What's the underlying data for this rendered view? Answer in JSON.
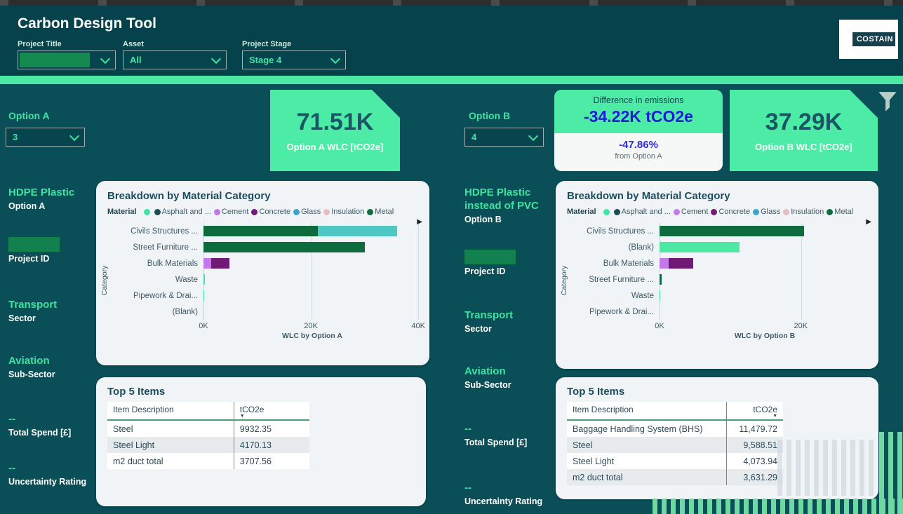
{
  "header": {
    "title": "Carbon Design Tool",
    "logo": "COSTAIN",
    "filters": [
      {
        "label": "Project Title",
        "value": ""
      },
      {
        "label": "Asset",
        "value": "All"
      },
      {
        "label": "Project Stage",
        "value": "Stage 4"
      }
    ]
  },
  "option_a": {
    "label": "Option A",
    "dropdown_value": "3",
    "kpi_value": "71.51K",
    "kpi_label": "Option A WLC [tCO2e]"
  },
  "option_b": {
    "label": "Option B",
    "dropdown_value": "4",
    "kpi_value": "37.29K",
    "kpi_label": "Option B WLC [tCO2e]",
    "difference": {
      "title": "Difference in emissions",
      "value": "-34.22K tCO2e",
      "percent": "-47.86%",
      "caption": "from Option A"
    }
  },
  "sidebar_a": {
    "items": [
      {
        "value": "HDPE Plastic",
        "label": "Option A"
      },
      {
        "value": "",
        "label": "Project ID"
      },
      {
        "value": "Transport",
        "label": "Sector"
      },
      {
        "value": "Aviation",
        "label": "Sub-Sector"
      },
      {
        "value": "--",
        "label": "Total Spend [£]"
      },
      {
        "value": "--",
        "label": "Uncertainty Rating"
      }
    ]
  },
  "sidebar_b": {
    "items": [
      {
        "value": "HDPE Plastic instead of PVC",
        "label": "Option B"
      },
      {
        "value": "",
        "label": "Project ID"
      },
      {
        "value": "Transport",
        "label": "Sector"
      },
      {
        "value": "Aviation",
        "label": "Sub-Sector"
      },
      {
        "value": "--",
        "label": "Total Spend [£]"
      },
      {
        "value": "--",
        "label": "Uncertainty Rating"
      }
    ]
  },
  "colors": {
    "background": "#0a4e57",
    "header_background": "#05424b",
    "accent_mint": "#4de9a4",
    "forest_green": "#0e6b3d",
    "difference_blue": "#1d1dd6",
    "card_background": "#f1f4f6"
  },
  "chart_data": [
    {
      "type": "bar",
      "orientation": "horizontal",
      "title": "Breakdown by Material Category",
      "legend_title": "Material",
      "legend_position": "top",
      "grid": true,
      "legend": [
        {
          "label": "",
          "color": "#3fe6a1"
        },
        {
          "label": "Asphalt and ...",
          "color": "#1b4d52"
        },
        {
          "label": "Cement",
          "color": "#c478ea"
        },
        {
          "label": "Concrete",
          "color": "#711a75"
        },
        {
          "label": "Glass",
          "color": "#3aa4cc"
        },
        {
          "label": "Insulation",
          "color": "#e7bcc3"
        },
        {
          "label": "Metal",
          "color": "#0e6b3d"
        }
      ],
      "ylabel": "Category",
      "xlabel": "WLC by Option A",
      "categories": [
        "Civils Structures ...",
        "Street Furniture ...",
        "Bulk Materials",
        "Waste",
        "Pipework & Drai...",
        "(Blank)"
      ],
      "bars": [
        {
          "segments": [
            {
              "value": 21300,
              "color": "#0e6b3d"
            },
            {
              "value": 14800,
              "color": "#4fc7c2"
            }
          ]
        },
        {
          "segments": [
            {
              "value": 30000,
              "color": "#0e6b3d"
            }
          ]
        },
        {
          "segments": [
            {
              "value": 1400,
              "color": "#c478ea"
            },
            {
              "value": 3400,
              "color": "#711a75"
            }
          ]
        },
        {
          "segments": [
            {
              "value": 220,
              "color": "#3fe6a1"
            }
          ]
        },
        {
          "segments": [
            {
              "value": 120,
              "color": "#3fe6a1"
            }
          ]
        },
        {
          "segments": []
        }
      ],
      "x_ticks": [
        {
          "label": "0K",
          "value": 0
        },
        {
          "label": "20K",
          "value": 20000
        },
        {
          "label": "40K",
          "value": 40000
        }
      ],
      "xlim": [
        0,
        40500
      ]
    },
    {
      "type": "bar",
      "orientation": "horizontal",
      "title": "Breakdown by Material Category",
      "legend_title": "Material",
      "legend_position": "top",
      "grid": true,
      "legend": [
        {
          "label": "",
          "color": "#3fe6a1"
        },
        {
          "label": "Asphalt and ...",
          "color": "#1b4d52"
        },
        {
          "label": "Cement",
          "color": "#c478ea"
        },
        {
          "label": "Concrete",
          "color": "#711a75"
        },
        {
          "label": "Glass",
          "color": "#3aa4cc"
        },
        {
          "label": "Insulation",
          "color": "#e7bcc3"
        },
        {
          "label": "Metal",
          "color": "#0e6b3d"
        }
      ],
      "ylabel": "Category",
      "xlabel": "WLC by Option B",
      "categories": [
        "Civils Structures ...",
        "(Blank)",
        "Bulk Materials",
        "Street Furniture ...",
        "Waste",
        "Pipework & Drai..."
      ],
      "bars": [
        {
          "segments": [
            {
              "value": 20500,
              "color": "#0e6b3d"
            }
          ]
        },
        {
          "segments": [
            {
              "value": 11300,
              "color": "#4de9a4"
            }
          ]
        },
        {
          "segments": [
            {
              "value": 1300,
              "color": "#c478ea"
            },
            {
              "value": 3500,
              "color": "#711a75"
            }
          ]
        },
        {
          "segments": [
            {
              "value": 250,
              "color": "#0e6b3d"
            }
          ]
        },
        {
          "segments": [
            {
              "value": 60,
              "color": "#3fe6a1"
            }
          ]
        },
        {
          "segments": []
        }
      ],
      "x_ticks": [
        {
          "label": "0K",
          "value": 0
        },
        {
          "label": "20K",
          "value": 20000
        }
      ],
      "xlim": [
        0,
        29800
      ]
    },
    {
      "type": "table",
      "title": "Top 5 Items",
      "columns": [
        "Item Description",
        "tCO2e"
      ],
      "sort_column": "tCO2e",
      "sort_direction": "desc",
      "value_align": "left",
      "rows": [
        [
          "Steel",
          "9932.35"
        ],
        [
          "Steel Light",
          "4170.13"
        ],
        [
          "m2 duct total",
          "3707.56"
        ]
      ]
    },
    {
      "type": "table",
      "title": "Top 5 Items",
      "columns": [
        "Item Description",
        "tCO2e"
      ],
      "sort_column": "tCO2e",
      "sort_direction": "desc",
      "value_align": "right",
      "rows": [
        [
          "Baggage Handling System (BHS)",
          "11,479.72"
        ],
        [
          "Steel",
          "9,588.51"
        ],
        [
          "Steel Light",
          "4,073.94"
        ],
        [
          "m2 duct total",
          "3,631.29"
        ]
      ]
    }
  ]
}
